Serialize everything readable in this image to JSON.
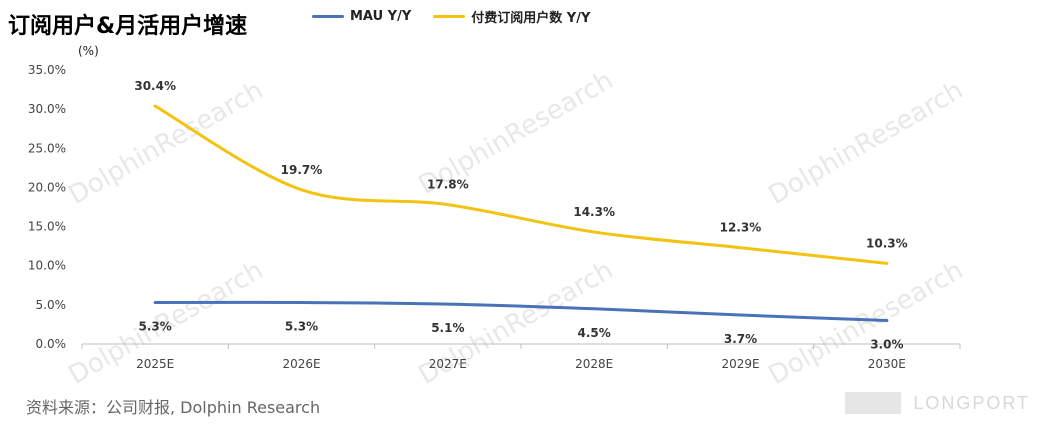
{
  "header": {
    "title": "订阅用户&月活用户增速"
  },
  "legend": [
    {
      "label": "MAU Y/Y",
      "color": "#4a72b8"
    },
    {
      "label": "付费订阅用户数 Y/Y",
      "color": "#f2c311"
    }
  ],
  "unit_label": "(%)",
  "footer": {
    "source": "资料来源：公司财报, Dolphin Research",
    "brand": "LONGPORT"
  },
  "watermark": "DolphinResearch",
  "chart_data": {
    "type": "line",
    "categories": [
      "2025E",
      "2026E",
      "2027E",
      "2028E",
      "2029E",
      "2030E"
    ],
    "series": [
      {
        "name": "MAU Y/Y",
        "values": [
          5.3,
          5.3,
          5.1,
          4.5,
          3.7,
          3.0
        ],
        "labels": [
          "5.3%",
          "5.3%",
          "5.1%",
          "4.5%",
          "3.7%",
          "3.0%"
        ],
        "color": "#4a72b8"
      },
      {
        "name": "付费订阅用户数 Y/Y",
        "values": [
          30.4,
          19.7,
          17.8,
          14.3,
          12.3,
          10.3
        ],
        "labels": [
          "30.4%",
          "19.7%",
          "17.8%",
          "14.3%",
          "12.3%",
          "10.3%"
        ],
        "color": "#f2c311"
      }
    ],
    "ylim": [
      0,
      35
    ],
    "yticks": [
      "0.0%",
      "5.0%",
      "10.0%",
      "15.0%",
      "20.0%",
      "25.0%",
      "30.0%",
      "35.0%"
    ],
    "grid": false,
    "legend_position": "top"
  }
}
